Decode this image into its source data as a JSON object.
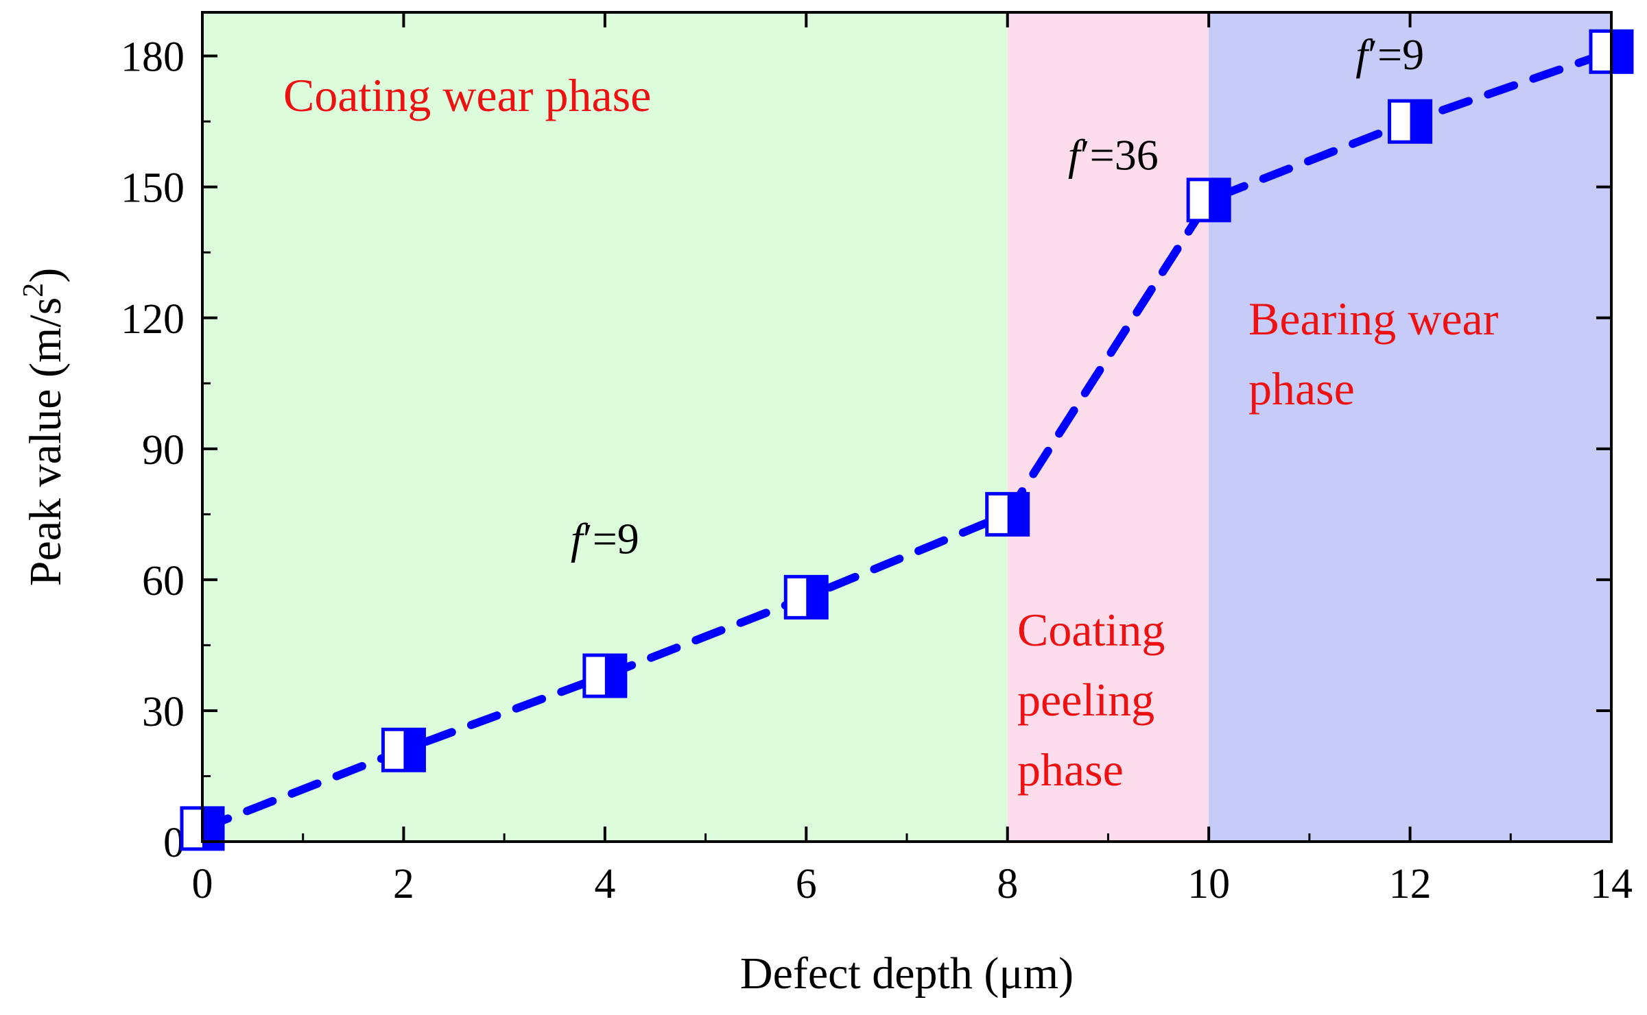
{
  "chart_data": {
    "type": "line",
    "xlabel": "Defect depth (μm)",
    "ylabel_main": "Peak value (m/s",
    "ylabel_sup": "2",
    "ylabel_close": ")",
    "xlim": [
      0,
      14
    ],
    "ylim": [
      0,
      190
    ],
    "xticks": [
      0,
      2,
      4,
      6,
      8,
      10,
      12,
      14
    ],
    "yticks": [
      0,
      30,
      60,
      90,
      120,
      150,
      180
    ],
    "grid": false,
    "legend": "none",
    "series": [
      {
        "x": [
          0,
          2,
          4,
          6,
          8,
          10,
          12,
          14
        ],
        "y": [
          3,
          21,
          38,
          56,
          75,
          147,
          165,
          181
        ],
        "color": "#0000ff",
        "line_style": "dashed",
        "marker": "half-filled-square"
      }
    ],
    "regions": [
      {
        "x0": 0,
        "x1": 8,
        "color": "#dcfcdc",
        "label_lines": [
          "Coating wear phase"
        ]
      },
      {
        "x0": 8,
        "x1": 10,
        "color": "#fddcec",
        "label_lines": [
          "Coating",
          "peeling",
          "phase"
        ]
      },
      {
        "x0": 10,
        "x1": 14,
        "color": "#c7cbf8",
        "label_lines": [
          "Bearing wear",
          "phase"
        ]
      }
    ],
    "annotations": [
      {
        "prefix": "f",
        "prime": "′",
        "value": "=9",
        "at_x": 4.0,
        "at_y": 66
      },
      {
        "prefix": "f",
        "prime": "′",
        "value": "=36",
        "at_x": 9.05,
        "at_y": 154
      },
      {
        "prefix": "f",
        "prime": "′",
        "value": "=9",
        "at_x": 11.8,
        "at_y": 177
      }
    ],
    "label_color": "#ee1111"
  }
}
